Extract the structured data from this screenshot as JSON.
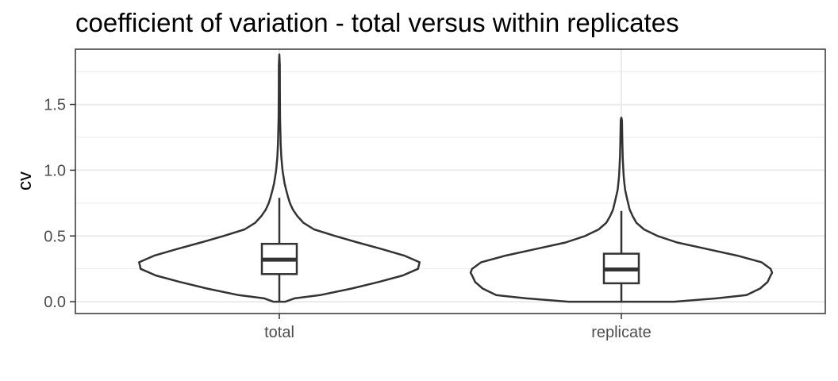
{
  "chart_data": {
    "type": "violin",
    "title": "coefficient of variation - total versus within replicates",
    "xlabel": "",
    "ylabel": "cv",
    "ylim": [
      -0.09,
      1.92
    ],
    "y_ticks": [
      {
        "value": 0.0,
        "label": "0.0"
      },
      {
        "value": 0.5,
        "label": "0.5"
      },
      {
        "value": 1.0,
        "label": "1.0"
      },
      {
        "value": 1.5,
        "label": "1.5"
      }
    ],
    "y_minor_gridlines": [
      0.25,
      0.75,
      1.25,
      1.75
    ],
    "categories": [
      "total",
      "replicate"
    ],
    "grid": true,
    "theme": "bw",
    "colors": {
      "outline": "#333333",
      "fill": "#ffffff",
      "grid": "#ebebeb",
      "panel_border": "#333333",
      "tick_text": "#4d4d4d"
    },
    "series": [
      {
        "category": "total",
        "boxplot": {
          "whisker_low": 0.0,
          "q1": 0.21,
          "median": 0.32,
          "q3": 0.44,
          "whisker_high": 0.79
        },
        "violin_profile": [
          {
            "y": 0.0,
            "half_width": 0.04
          },
          {
            "y": 0.025,
            "half_width": 0.1
          },
          {
            "y": 0.05,
            "half_width": 0.27
          },
          {
            "y": 0.1,
            "half_width": 0.48
          },
          {
            "y": 0.15,
            "half_width": 0.66
          },
          {
            "y": 0.2,
            "half_width": 0.82
          },
          {
            "y": 0.25,
            "half_width": 0.92
          },
          {
            "y": 0.3,
            "half_width": 0.93
          },
          {
            "y": 0.35,
            "half_width": 0.83
          },
          {
            "y": 0.4,
            "half_width": 0.68
          },
          {
            "y": 0.45,
            "half_width": 0.52
          },
          {
            "y": 0.5,
            "half_width": 0.37
          },
          {
            "y": 0.55,
            "half_width": 0.23
          },
          {
            "y": 0.6,
            "half_width": 0.16
          },
          {
            "y": 0.65,
            "half_width": 0.12
          },
          {
            "y": 0.7,
            "half_width": 0.09
          },
          {
            "y": 0.75,
            "half_width": 0.07
          },
          {
            "y": 0.8,
            "half_width": 0.057
          },
          {
            "y": 0.85,
            "half_width": 0.045
          },
          {
            "y": 0.9,
            "half_width": 0.035
          },
          {
            "y": 0.95,
            "half_width": 0.028
          },
          {
            "y": 1.0,
            "half_width": 0.021
          },
          {
            "y": 1.1,
            "half_width": 0.013
          },
          {
            "y": 1.2,
            "half_width": 0.009
          },
          {
            "y": 1.3,
            "half_width": 0.007
          },
          {
            "y": 1.4,
            "half_width": 0.005
          },
          {
            "y": 1.6,
            "half_width": 0.0035
          },
          {
            "y": 1.8,
            "half_width": 0.003
          },
          {
            "y": 1.88,
            "half_width": 0.0
          }
        ]
      },
      {
        "category": "replicate",
        "boxplot": {
          "whisker_low": 0.0,
          "q1": 0.14,
          "median": 0.245,
          "q3": 0.365,
          "whisker_high": 0.69
        },
        "violin_profile": [
          {
            "y": 0.0,
            "half_width": 0.35
          },
          {
            "y": 0.025,
            "half_width": 0.63
          },
          {
            "y": 0.05,
            "half_width": 0.83
          },
          {
            "y": 0.1,
            "half_width": 0.92
          },
          {
            "y": 0.15,
            "half_width": 0.97
          },
          {
            "y": 0.2,
            "half_width": 0.99
          },
          {
            "y": 0.22,
            "half_width": 1.0
          },
          {
            "y": 0.25,
            "half_width": 0.99
          },
          {
            "y": 0.3,
            "half_width": 0.93
          },
          {
            "y": 0.35,
            "half_width": 0.77
          },
          {
            "y": 0.4,
            "half_width": 0.57
          },
          {
            "y": 0.45,
            "half_width": 0.37
          },
          {
            "y": 0.5,
            "half_width": 0.24
          },
          {
            "y": 0.55,
            "half_width": 0.15
          },
          {
            "y": 0.6,
            "half_width": 0.1
          },
          {
            "y": 0.65,
            "half_width": 0.075
          },
          {
            "y": 0.7,
            "half_width": 0.055
          },
          {
            "y": 0.75,
            "half_width": 0.045
          },
          {
            "y": 0.8,
            "half_width": 0.035
          },
          {
            "y": 0.85,
            "half_width": 0.025
          },
          {
            "y": 0.9,
            "half_width": 0.02
          },
          {
            "y": 0.95,
            "half_width": 0.016
          },
          {
            "y": 1.0,
            "half_width": 0.013
          },
          {
            "y": 1.1,
            "half_width": 0.009
          },
          {
            "y": 1.2,
            "half_width": 0.007
          },
          {
            "y": 1.3,
            "half_width": 0.005
          },
          {
            "y": 1.38,
            "half_width": 0.004
          },
          {
            "y": 1.4,
            "half_width": 0.0
          }
        ]
      }
    ]
  }
}
